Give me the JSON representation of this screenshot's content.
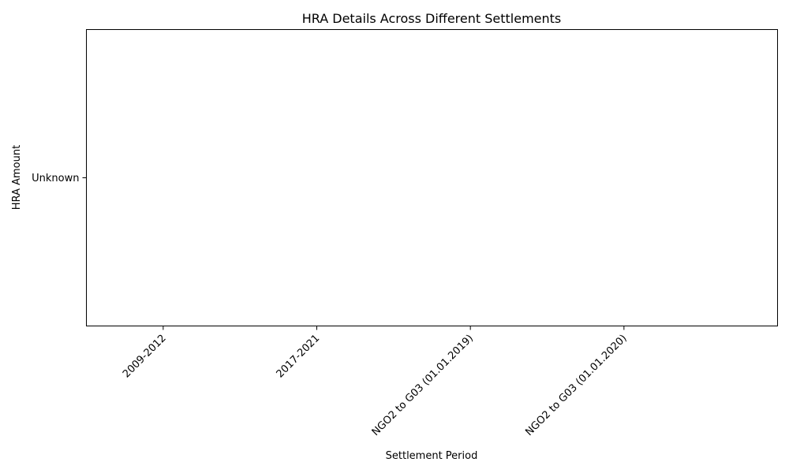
{
  "chart_data": {
    "type": "bar",
    "title": "HRA Details Across Different Settlements",
    "xlabel": "Settlement Period",
    "ylabel": "HRA Amount",
    "categories": [
      "2009-2012",
      "2017-2021",
      "NGO2 to G03 (01.01.2019)",
      "NGO2 to G03 (01.01.2020)"
    ],
    "y_tick_labels": [
      "Unknown"
    ],
    "values": [
      null,
      null,
      null,
      null
    ],
    "grid": false,
    "legend": "none"
  }
}
